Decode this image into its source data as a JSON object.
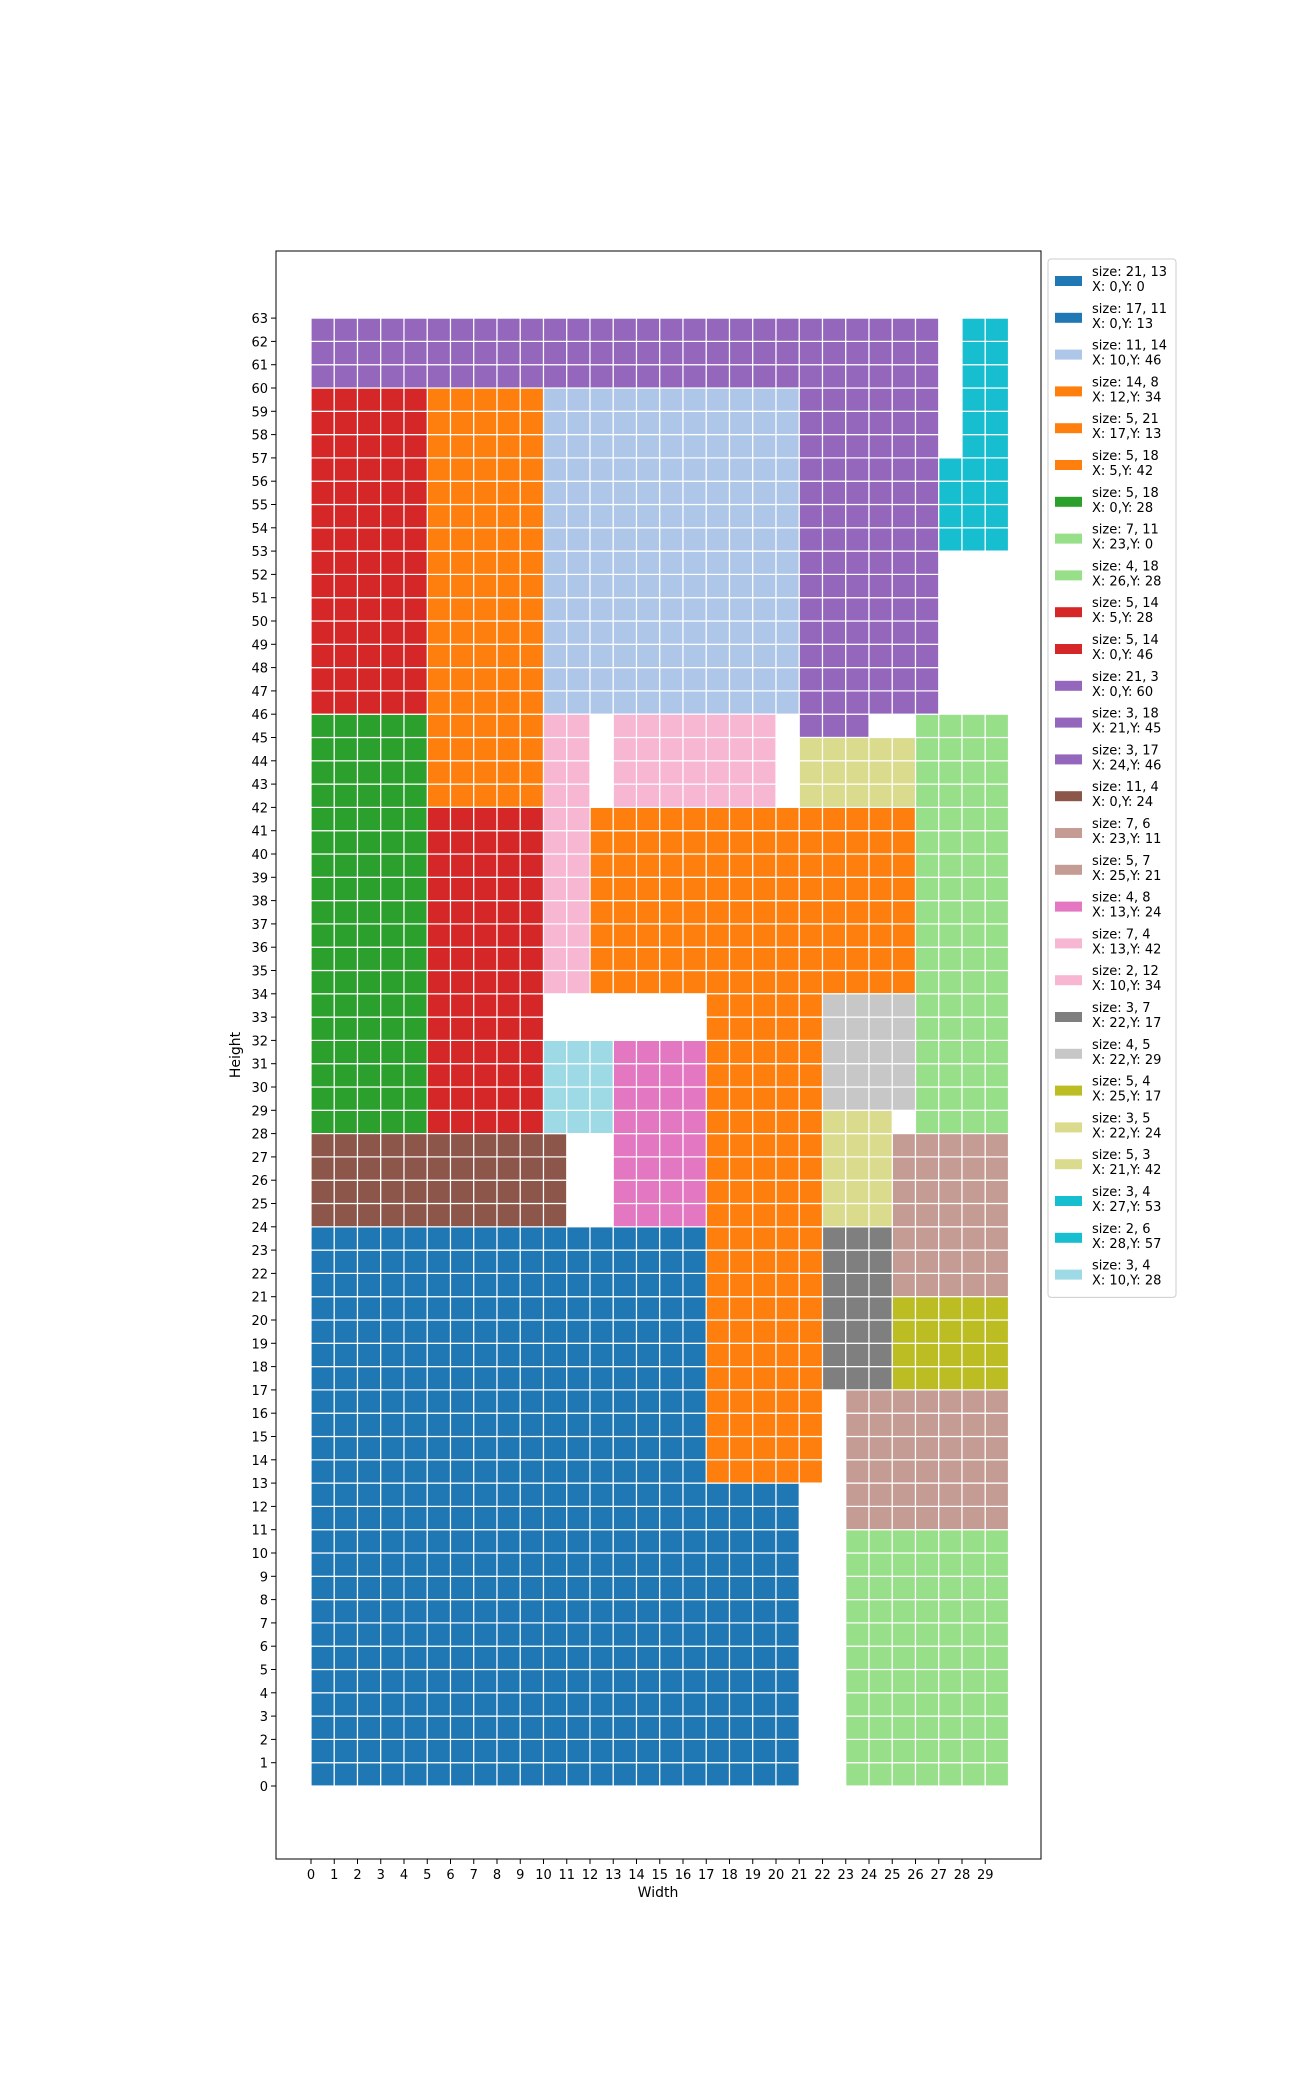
{
  "chart_data": {
    "type": "packing-grid",
    "title": "",
    "xlabel": "Width",
    "ylabel": "Height",
    "xlim": [
      0,
      30
    ],
    "ylim": [
      0,
      64
    ],
    "xticks": [
      0,
      1,
      2,
      3,
      4,
      5,
      6,
      7,
      8,
      9,
      10,
      11,
      12,
      13,
      14,
      15,
      16,
      17,
      18,
      19,
      20,
      21,
      22,
      23,
      24,
      25,
      26,
      27,
      28,
      29
    ],
    "yticks": [
      0,
      1,
      2,
      3,
      4,
      5,
      6,
      7,
      8,
      9,
      10,
      11,
      12,
      13,
      14,
      15,
      16,
      17,
      18,
      19,
      20,
      21,
      22,
      23,
      24,
      25,
      26,
      27,
      28,
      29,
      30,
      31,
      32,
      33,
      34,
      35,
      36,
      37,
      38,
      39,
      40,
      41,
      42,
      43,
      44,
      45,
      46,
      47,
      48,
      49,
      50,
      51,
      52,
      53,
      54,
      55,
      56,
      57,
      58,
      59,
      60,
      61,
      62,
      63
    ],
    "grid_line_color": "#ffffff",
    "legend_placement": "outside-right-top",
    "rectangles": [
      {
        "w": 21,
        "h": 13,
        "x": 0,
        "y": 0,
        "color": "#1f77b4",
        "label": "size: 21, 13",
        "pos": "X: 0,Y: 0"
      },
      {
        "w": 17,
        "h": 11,
        "x": 0,
        "y": 13,
        "color": "#1f77b4",
        "label": "size: 17, 11",
        "pos": "X: 0,Y: 13"
      },
      {
        "w": 11,
        "h": 14,
        "x": 10,
        "y": 46,
        "color": "#aec7e8",
        "label": "size: 11, 14",
        "pos": "X: 10,Y: 46"
      },
      {
        "w": 14,
        "h": 8,
        "x": 12,
        "y": 34,
        "color": "#ff7f0e",
        "label": "size: 14, 8",
        "pos": "X: 12,Y: 34"
      },
      {
        "w": 5,
        "h": 21,
        "x": 17,
        "y": 13,
        "color": "#ff7f0e",
        "label": "size: 5, 21",
        "pos": "X: 17,Y: 13"
      },
      {
        "w": 5,
        "h": 18,
        "x": 5,
        "y": 42,
        "color": "#ff7f0e",
        "label": "size: 5, 18",
        "pos": "X: 5,Y: 42"
      },
      {
        "w": 5,
        "h": 18,
        "x": 0,
        "y": 28,
        "color": "#2ca02c",
        "label": "size: 5, 18",
        "pos": "X: 0,Y: 28"
      },
      {
        "w": 7,
        "h": 11,
        "x": 23,
        "y": 0,
        "color": "#98df8a",
        "label": "size: 7, 11",
        "pos": "X: 23,Y: 0"
      },
      {
        "w": 4,
        "h": 18,
        "x": 26,
        "y": 28,
        "color": "#98df8a",
        "label": "size: 4, 18",
        "pos": "X: 26,Y: 28"
      },
      {
        "w": 5,
        "h": 14,
        "x": 5,
        "y": 28,
        "color": "#d62728",
        "label": "size: 5, 14",
        "pos": "X: 5,Y: 28"
      },
      {
        "w": 5,
        "h": 14,
        "x": 0,
        "y": 46,
        "color": "#d62728",
        "label": "size: 5, 14",
        "pos": "X: 0,Y: 46"
      },
      {
        "w": 21,
        "h": 3,
        "x": 0,
        "y": 60,
        "color": "#9467bd",
        "label": "size: 21, 3",
        "pos": "X: 0,Y: 60"
      },
      {
        "w": 3,
        "h": 18,
        "x": 21,
        "y": 45,
        "color": "#9467bd",
        "label": "size: 3, 18",
        "pos": "X: 21,Y: 45"
      },
      {
        "w": 3,
        "h": 17,
        "x": 24,
        "y": 46,
        "color": "#9467bd",
        "label": "size: 3, 17",
        "pos": "X: 24,Y: 46"
      },
      {
        "w": 11,
        "h": 4,
        "x": 0,
        "y": 24,
        "color": "#8c564b",
        "label": "size: 11, 4",
        "pos": "X: 0,Y: 24"
      },
      {
        "w": 7,
        "h": 6,
        "x": 23,
        "y": 11,
        "color": "#c49c94",
        "label": "size: 7, 6",
        "pos": "X: 23,Y: 11"
      },
      {
        "w": 5,
        "h": 7,
        "x": 25,
        "y": 21,
        "color": "#c49c94",
        "label": "size: 5, 7",
        "pos": "X: 25,Y: 21"
      },
      {
        "w": 4,
        "h": 8,
        "x": 13,
        "y": 24,
        "color": "#e377c2",
        "label": "size: 4, 8",
        "pos": "X: 13,Y: 24"
      },
      {
        "w": 7,
        "h": 4,
        "x": 13,
        "y": 42,
        "color": "#f7b6d2",
        "label": "size: 7, 4",
        "pos": "X: 13,Y: 42"
      },
      {
        "w": 2,
        "h": 12,
        "x": 10,
        "y": 34,
        "color": "#f7b6d2",
        "label": "size: 2, 12",
        "pos": "X: 10,Y: 34"
      },
      {
        "w": 3,
        "h": 7,
        "x": 22,
        "y": 17,
        "color": "#7f7f7f",
        "label": "size: 3, 7",
        "pos": "X: 22,Y: 17"
      },
      {
        "w": 4,
        "h": 5,
        "x": 22,
        "y": 29,
        "color": "#c7c7c7",
        "label": "size: 4, 5",
        "pos": "X: 22,Y: 29"
      },
      {
        "w": 5,
        "h": 4,
        "x": 25,
        "y": 17,
        "color": "#bcbd22",
        "label": "size: 5, 4",
        "pos": "X: 25,Y: 17"
      },
      {
        "w": 3,
        "h": 5,
        "x": 22,
        "y": 24,
        "color": "#dbdb8d",
        "label": "size: 3, 5",
        "pos": "X: 22,Y: 24"
      },
      {
        "w": 5,
        "h": 3,
        "x": 21,
        "y": 42,
        "color": "#dbdb8d",
        "label": "size: 5, 3",
        "pos": "X: 21,Y: 42"
      },
      {
        "w": 3,
        "h": 4,
        "x": 27,
        "y": 53,
        "color": "#17becf",
        "label": "size: 3, 4",
        "pos": "X: 27,Y: 53"
      },
      {
        "w": 2,
        "h": 6,
        "x": 28,
        "y": 57,
        "color": "#17becf",
        "label": "size: 2, 6",
        "pos": "X: 28,Y: 57"
      },
      {
        "w": 3,
        "h": 4,
        "x": 10,
        "y": 28,
        "color": "#9edae5",
        "label": "size: 3, 4",
        "pos": "X: 10,Y: 28"
      }
    ]
  }
}
